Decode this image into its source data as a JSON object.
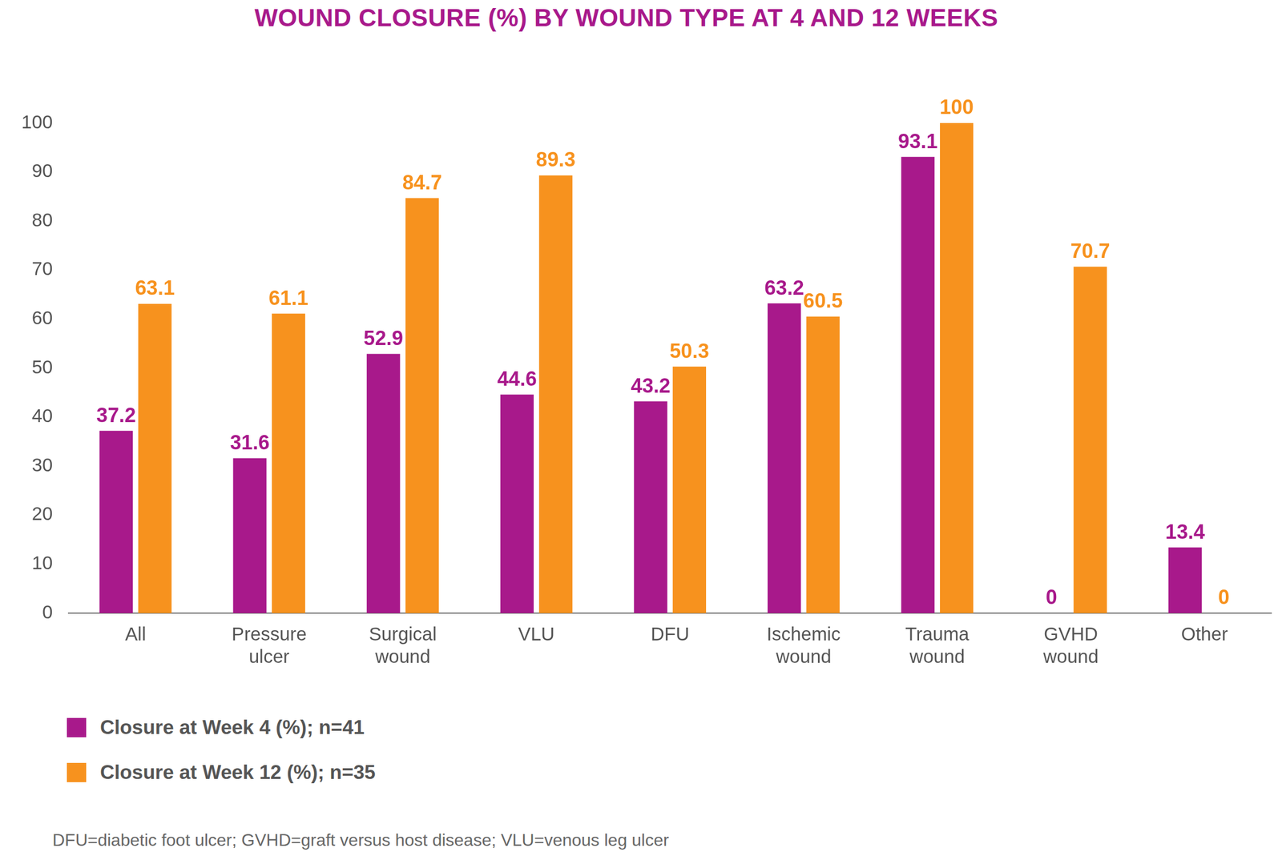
{
  "chart_data": {
    "type": "bar",
    "title": "WOUND CLOSURE (%) BY WOUND TYPE AT 4 AND 12 WEEKS",
    "categories": [
      "All",
      "Pressure ulcer",
      "Surgical wound",
      "VLU",
      "DFU",
      "Ischemic wound",
      "Trauma wound",
      "GVHD wound",
      "Other"
    ],
    "series": [
      {
        "name": "Closure at Week 4 (%); n=41",
        "color": "#a8198b",
        "values": [
          37.2,
          31.6,
          52.9,
          44.6,
          43.2,
          63.2,
          93.1,
          0,
          13.4
        ]
      },
      {
        "name": "Closure at Week 12 (%); n=35",
        "color": "#f7921e",
        "values": [
          63.1,
          61.1,
          84.7,
          89.3,
          50.3,
          60.5,
          100,
          70.7,
          0
        ]
      }
    ],
    "ylim": [
      0,
      100
    ],
    "yticks": [
      0,
      10,
      20,
      30,
      40,
      50,
      60,
      70,
      80,
      90,
      100
    ],
    "grid": false,
    "legend": "bottom-left",
    "data_labels": true,
    "footnote": "DFU=diabetic foot ulcer; GVHD=graft versus host disease; VLU=venous leg ulcer"
  }
}
